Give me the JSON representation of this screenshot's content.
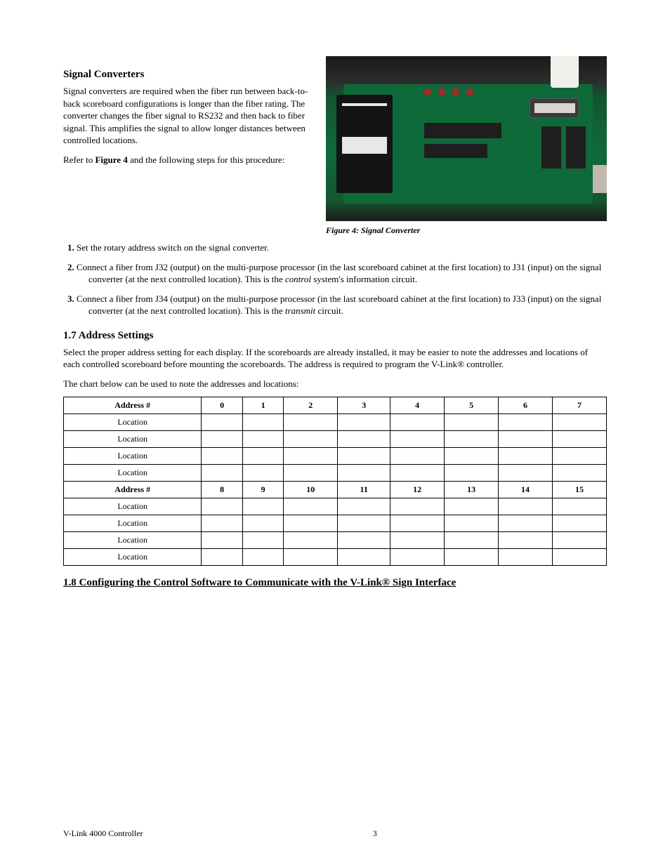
{
  "figure": {
    "caption": "Figure 4: Signal Converter"
  },
  "sec_signal_converters": {
    "heading": "Signal Converters",
    "p1": "Signal converters are required when the fiber run between back-to-back scoreboard configurations is longer than the fiber rating. The converter changes the fiber signal to RS232 and then back to fiber signal. This amplifies the signal to allow longer distances between controlled locations.",
    "p2_1": "Refer to ",
    "p2_bold1": "Figure 4",
    "p2_2": " and the following steps for this procedure:",
    "step1_bold": "1.",
    "step1": " Set the rotary address switch on the signal converter.",
    "step2_bold": "2.",
    "step2_1": " Connect a fiber from J32 (output) on the multi-purpose processor (in the last scoreboard cabinet at the first location) to J31 (input) on the signal converter (at the next controlled location). This is the ",
    "step2_em": "control",
    "step2_2": " system's information circuit.",
    "step3_bold": "3.",
    "step3_1": " Connect a fiber from J34 (output) on the multi-purpose processor (in the last scoreboard cabinet at the first location) to J33 (input) on the signal converter (at the next controlled location). This is the ",
    "step3_em": "transmit",
    "step3_2": " circuit."
  },
  "sec_address": {
    "heading": "1.7  Address Settings",
    "p1": "Select the proper address setting for each display. If the scoreboards are already installed, it may be easier to note the addresses and locations of each controlled scoreboard before mounting the scoreboards. The address is required to program the V-Link® controller.",
    "p2": "The chart below can be used to note the addresses and locations:"
  },
  "table": {
    "headers": [
      "Address #",
      "0",
      "1",
      "2",
      "3",
      "4",
      "5",
      "6",
      "7"
    ],
    "row_label": "Location",
    "footer": [
      "Address #",
      "8",
      "9",
      "10",
      "11",
      "12",
      "13",
      "14",
      "15"
    ]
  },
  "sec_config": {
    "heading": "1.8  Configuring the Control Software to Communicate with the V-Link® Sign Interface"
  },
  "footer": {
    "left": "V-Link 4000 Controller",
    "pagenum": "3"
  }
}
